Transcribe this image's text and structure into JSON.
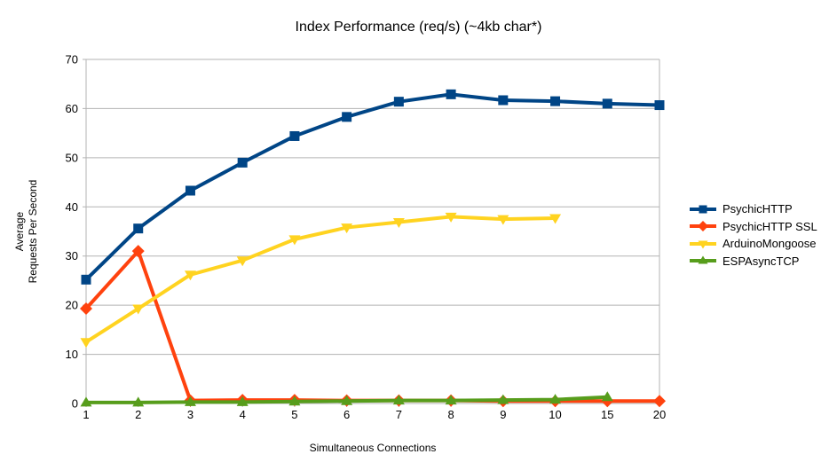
{
  "chart_data": {
    "type": "line",
    "title": "Index Performance (req/s) (~4kb char*)",
    "xlabel": "Simultaneous Connections",
    "ylabel_lines": [
      "Average",
      "Requests Per Second"
    ],
    "categories": [
      "1",
      "2",
      "3",
      "4",
      "5",
      "6",
      "7",
      "8",
      "9",
      "10",
      "15",
      "20"
    ],
    "y_ticks": [
      0,
      10,
      20,
      30,
      40,
      50,
      60,
      70
    ],
    "ylim": [
      0,
      70
    ],
    "grid": "horizontal",
    "legend_position": "right",
    "series": [
      {
        "name": "PsychicHTTP",
        "color": "#004586",
        "marker": "square",
        "values": [
          25.2,
          35.6,
          43.3,
          49.0,
          54.4,
          58.3,
          61.4,
          62.9,
          61.7,
          61.5,
          61.0,
          60.7
        ]
      },
      {
        "name": "PsychicHTTP SSL",
        "color": "#FF420E",
        "marker": "diamond",
        "values": [
          19.3,
          31.0,
          0.6,
          0.7,
          0.7,
          0.6,
          0.6,
          0.6,
          0.5,
          0.5,
          0.5,
          0.5
        ]
      },
      {
        "name": "ArduinoMongoose",
        "color": "#FFD320",
        "marker": "triangle-down",
        "values": [
          12.5,
          19.3,
          26.2,
          29.1,
          33.4,
          35.8,
          36.9,
          38.0,
          37.5,
          37.7,
          null,
          null
        ]
      },
      {
        "name": "ESPAsyncTCP",
        "color": "#579D1C",
        "marker": "triangle-up",
        "values": [
          0.2,
          0.2,
          0.3,
          0.3,
          0.4,
          0.5,
          0.6,
          0.6,
          0.7,
          0.8,
          1.3,
          null
        ]
      }
    ],
    "colors": {
      "grid": "#b3b3b3",
      "background": "#ffffff",
      "text": "#000000"
    }
  }
}
